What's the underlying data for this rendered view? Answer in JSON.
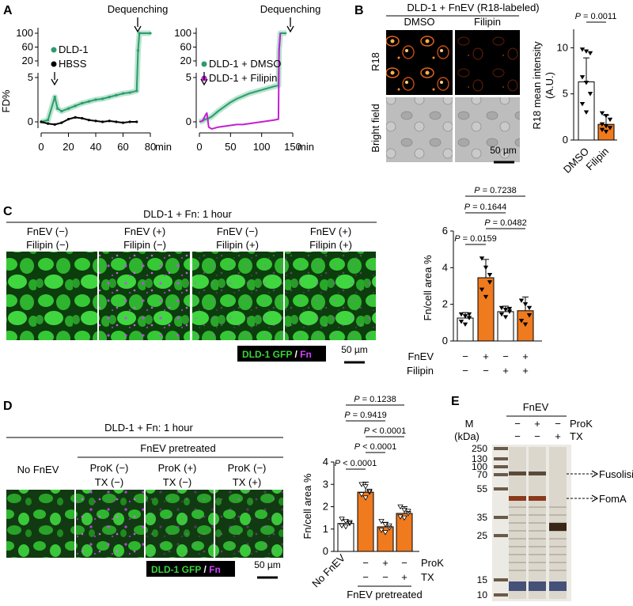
{
  "figure_title": "Multi-panel figure: FnEV fusion with DLD-1 cells",
  "colors": {
    "green": "#2a9d6a",
    "green_light": "#9ed9bd",
    "magenta": "#c21fd2",
    "orange": "#f07a1e",
    "black": "#000000",
    "cell_green": "#3ad43a",
    "fn_magenta": "#d040ff"
  },
  "panelA": {
    "label": "A",
    "ylabel": "FD%",
    "left": {
      "dequench_label": "Dequenching",
      "legend": [
        "DLD-1",
        "HBSS"
      ],
      "xticks": [
        "0",
        "20",
        "40",
        "60",
        "80"
      ],
      "xunit": "min",
      "yticks_top": [
        "100",
        "60",
        "20"
      ],
      "yticks_bottom": [
        "5",
        "0"
      ]
    },
    "right": {
      "dequench_label": "Dequenching",
      "legend": [
        "DLD-1 + DMSO",
        "DLD-1 + Filipin"
      ],
      "xticks": [
        "0",
        "50",
        "100",
        "150"
      ],
      "xunit": "min",
      "yticks_top": [
        "100",
        "60",
        "20"
      ],
      "yticks_bottom": [
        "5",
        "0"
      ]
    }
  },
  "panelB": {
    "label": "B",
    "title": "DLD-1 + FnEV (R18-labeled)",
    "col_labels": [
      "DMSO",
      "Filipin"
    ],
    "row_labels": [
      "R18",
      "Bright field"
    ],
    "scalebar": "50 µm",
    "pvalue": "P = 0.0011",
    "chart_ylabel_1": "R18 mean intensity",
    "chart_ylabel_2": "(A.U.)",
    "yticks": [
      "0",
      "5",
      "10"
    ],
    "categories": [
      "DMSO",
      "Filipin"
    ]
  },
  "panelC": {
    "label": "C",
    "title": "DLD-1 + Fn: 1 hour",
    "conditions": [
      {
        "l1": "FnEV (−)",
        "l2": "Filipin (−)"
      },
      {
        "l1": "FnEV (+)",
        "l2": "Filipin (−)"
      },
      {
        "l1": "FnEV (−)",
        "l2": "Filipin (+)"
      },
      {
        "l1": "FnEV (+)",
        "l2": "Filipin (+)"
      }
    ],
    "legend_gfp": "DLD-1 GFP",
    "legend_sep": " / ",
    "legend_fn": "Fn",
    "scalebar": "50 µm",
    "pvalues": [
      "P = 0.7238",
      "P = 0.1644",
      "P = 0.0482",
      "P = 0.0159"
    ],
    "ylabel": "Fn/cell area %",
    "yticks": [
      "0",
      "2",
      "4",
      "6"
    ],
    "row1_label": "FnEV",
    "row2_label": "Filipin",
    "row1_signs": [
      "−",
      "+",
      "−",
      "+"
    ],
    "row2_signs": [
      "−",
      "−",
      "+",
      "+"
    ]
  },
  "panelD": {
    "label": "D",
    "title": "DLD-1 + Fn: 1 hour",
    "subtitle": "FnEV pretreated",
    "conditions": [
      {
        "l1": "No FnEV",
        "l2": ""
      },
      {
        "l1": "ProK (−)",
        "l2": "TX (−)"
      },
      {
        "l1": "ProK (+)",
        "l2": "TX (−)"
      },
      {
        "l1": "ProK (−)",
        "l2": "TX (+)"
      }
    ],
    "legend_gfp": "DLD-1 GFP",
    "legend_sep": " / ",
    "legend_fn": "Fn",
    "scalebar": "50 µm",
    "pvalues": [
      "P = 0.1238",
      "P = 0.9419",
      "P < 0.0001",
      "P < 0.0001",
      "P < 0.0001"
    ],
    "ylabel": "Fn/cell area %",
    "yticks": [
      "0",
      "1",
      "2",
      "3",
      "4"
    ],
    "first_cat": "No FnEV",
    "row1_label": "ProK",
    "row2_label": "TX",
    "row1_signs": [
      "−",
      "+",
      "−"
    ],
    "row2_signs": [
      "−",
      "−",
      "+"
    ],
    "group_label": "FnEV pretreated"
  },
  "panelE": {
    "label": "E",
    "header": "FnEV",
    "marker_label": "M",
    "unit_label": "(kDa)",
    "row1_label": "ProK",
    "row2_label": "TX",
    "row1_signs": [
      "−",
      "+",
      "−"
    ],
    "row2_signs": [
      "−",
      "−",
      "+"
    ],
    "mw": [
      "250",
      "130",
      "100",
      "70",
      "55",
      "35",
      "25",
      "15",
      "10"
    ],
    "band_fusolisin": "Fusolisin",
    "band_foma": "FomA"
  },
  "chart_data": [
    {
      "id": "A-left",
      "type": "line",
      "xlabel": "min",
      "ylabel": "FD%",
      "xlim": [
        0,
        80
      ],
      "series": [
        {
          "name": "DLD-1",
          "x": [
            0,
            5,
            10,
            12,
            15,
            20,
            25,
            30,
            35,
            40,
            45,
            50,
            55,
            60,
            65,
            70,
            71,
            72,
            80
          ],
          "values": [
            0,
            0.2,
            2.8,
            1.5,
            1.2,
            1.5,
            1.8,
            2.1,
            2.3,
            2.5,
            2.6,
            2.8,
            3.0,
            3.2,
            3.3,
            3.5,
            50,
            100,
            100
          ]
        },
        {
          "name": "HBSS",
          "x": [
            0,
            5,
            10,
            15,
            20,
            25,
            30,
            35,
            40,
            45,
            50,
            55,
            60,
            65,
            70
          ],
          "values": [
            0,
            -0.2,
            -0.3,
            -0.1,
            0.3,
            0.5,
            0.4,
            0.2,
            0.1,
            0.0,
            0.1,
            0.0,
            -0.1,
            0.0,
            0.0
          ]
        }
      ]
    },
    {
      "id": "A-right",
      "type": "line",
      "xlabel": "min",
      "ylabel": "FD%",
      "xlim": [
        0,
        150
      ],
      "series": [
        {
          "name": "DLD-1 + DMSO",
          "x": [
            0,
            5,
            10,
            15,
            20,
            30,
            40,
            50,
            60,
            70,
            80,
            90,
            100,
            110,
            120,
            127,
            128,
            130,
            140
          ],
          "values": [
            0,
            0.1,
            0.3,
            0.4,
            0.6,
            1.2,
            1.7,
            2.2,
            2.6,
            2.9,
            3.2,
            3.4,
            3.6,
            3.8,
            4.0,
            4.1,
            50,
            100,
            100
          ]
        },
        {
          "name": "DLD-1 + Filipin",
          "x": [
            0,
            5,
            10,
            12,
            15,
            20,
            30,
            40,
            50,
            60,
            70,
            80,
            90,
            100,
            110,
            120,
            127,
            128,
            130
          ],
          "values": [
            0,
            0.1,
            0.8,
            1.0,
            -0.6,
            -0.8,
            -0.6,
            -0.5,
            -0.4,
            -0.3,
            -0.3,
            -0.2,
            -0.1,
            0.0,
            0.1,
            0.2,
            0.3,
            50,
            100
          ]
        }
      ]
    },
    {
      "id": "B-bar",
      "type": "bar",
      "title": "",
      "ylabel": "R18 mean intensity (A.U.)",
      "categories": [
        "DMSO",
        "Filipin"
      ],
      "values": [
        6.3,
        1.7
      ],
      "errors": [
        2.6,
        1.0
      ],
      "ylim": [
        0,
        12
      ],
      "points": [
        [
          9.8,
          9.6,
          9.4,
          6.8,
          6.2,
          5.0,
          3.9,
          3.0
        ],
        [
          2.9,
          2.6,
          2.2,
          1.7,
          1.5,
          1.3,
          1.1,
          0.9
        ]
      ]
    },
    {
      "id": "C-bar",
      "type": "bar",
      "ylabel": "Fn/cell area %",
      "categories": [
        "FnEV− Filipin−",
        "FnEV+ Filipin−",
        "FnEV− Filipin+",
        "FnEV+ Filipin+"
      ],
      "values": [
        1.25,
        3.45,
        1.6,
        1.65
      ],
      "errors": [
        0.3,
        1.0,
        0.3,
        0.75
      ],
      "ylim": [
        0,
        6
      ],
      "points": [
        [
          1.45,
          1.35,
          1.25,
          1.05,
          0.9,
          1.45
        ],
        [
          4.5,
          4.0,
          3.2,
          2.8,
          2.4,
          3.6
        ],
        [
          1.8,
          1.7,
          1.6,
          1.45,
          1.3,
          1.75
        ],
        [
          2.2,
          2.0,
          1.8,
          1.1,
          0.9,
          1.4
        ]
      ]
    },
    {
      "id": "D-bar",
      "type": "bar",
      "ylabel": "Fn/cell area %",
      "categories": [
        "No FnEV",
        "ProK− TX−",
        "ProK+ TX−",
        "ProK− TX+"
      ],
      "values": [
        1.25,
        2.65,
        1.1,
        1.7
      ],
      "errors": [
        0.15,
        0.45,
        0.2,
        0.3
      ],
      "ylim": [
        0,
        4
      ],
      "points": [
        [
          1.45,
          1.35,
          1.25,
          1.15,
          1.1,
          1.3
        ],
        [
          3.0,
          2.9,
          2.7,
          2.55,
          2.4,
          2.65
        ],
        [
          1.35,
          1.2,
          1.05,
          0.95,
          0.85,
          1.15
        ],
        [
          2.0,
          1.85,
          1.7,
          1.55,
          1.5,
          1.8
        ]
      ]
    }
  ]
}
